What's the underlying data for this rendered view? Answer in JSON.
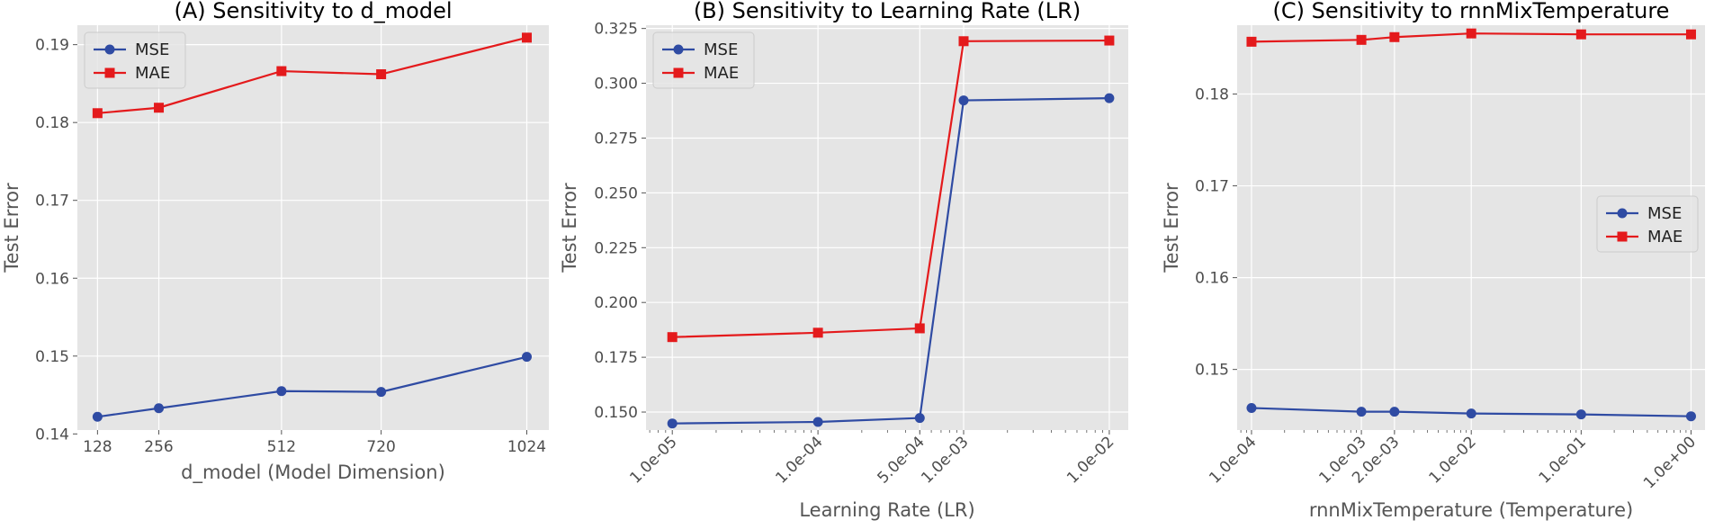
{
  "colors": {
    "mse": "#2f4ba3",
    "mae": "#e41a1c",
    "panel_bg": "#e5e5e5",
    "grid": "#ffffff"
  },
  "chart_data": [
    {
      "type": "line",
      "title": "(A) Sensitivity to d_model",
      "xlabel": "d_model (Model Dimension)",
      "ylabel": "Test Error",
      "xscale": "linear",
      "xlim": [
        86,
        1070
      ],
      "ylim": [
        0.1405,
        0.1925
      ],
      "x": [
        128,
        256,
        512,
        720,
        1024
      ],
      "xticks": [
        128,
        256,
        512,
        720,
        1024
      ],
      "xtick_labels": [
        "128",
        "256",
        "512",
        "720",
        "1024"
      ],
      "yticks": [
        0.14,
        0.15,
        0.16,
        0.17,
        0.18,
        0.19
      ],
      "ytick_labels": [
        "0.14",
        "0.15",
        "0.16",
        "0.17",
        "0.18",
        "0.19"
      ],
      "legend": "top-left",
      "series": [
        {
          "name": "MSE",
          "marker": "circle",
          "values": [
            0.1422,
            0.1433,
            0.1455,
            0.1454,
            0.1499
          ]
        },
        {
          "name": "MAE",
          "marker": "square",
          "values": [
            0.1812,
            0.1819,
            0.1866,
            0.1862,
            0.1909
          ]
        }
      ]
    },
    {
      "type": "line",
      "title": "(B) Sensitivity to Learning Rate (LR)",
      "xlabel": "Learning Rate (LR)",
      "ylabel": "Test Error",
      "xscale": "log",
      "xlim": [
        6.6e-06,
        0.0135
      ],
      "ylim": [
        0.1418,
        0.3265
      ],
      "x": [
        1e-05,
        0.0001,
        0.0005,
        0.001,
        0.01
      ],
      "xticks": [
        1e-05,
        0.0001,
        0.0005,
        0.001,
        0.01
      ],
      "xtick_labels": [
        "1.0e-05",
        "1.0e-04",
        "5.0e-04",
        "1.0e-03",
        "1.0e-02"
      ],
      "yticks": [
        0.15,
        0.175,
        0.2,
        0.225,
        0.25,
        0.275,
        0.3,
        0.325
      ],
      "ytick_labels": [
        "0.150",
        "0.175",
        "0.200",
        "0.225",
        "0.250",
        "0.275",
        "0.300",
        "0.325"
      ],
      "legend": "top-left",
      "series": [
        {
          "name": "MSE",
          "marker": "circle",
          "values": [
            0.1448,
            0.1455,
            0.1473,
            0.2922,
            0.2932
          ]
        },
        {
          "name": "MAE",
          "marker": "square",
          "values": [
            0.1842,
            0.1862,
            0.1882,
            0.3192,
            0.3195
          ]
        }
      ]
    },
    {
      "type": "line",
      "title": "(C) Sensitivity to rnnMixTemperature",
      "xlabel": "rnnMixTemperature (Temperature)",
      "ylabel": "Test Error",
      "xscale": "log",
      "xlim": [
        7.4e-05,
        1.34
      ],
      "ylim": [
        0.1434,
        0.1875
      ],
      "x": [
        0.0001,
        0.001,
        0.002,
        0.01,
        0.1,
        1
      ],
      "xticks": [
        0.0001,
        0.001,
        0.002,
        0.01,
        0.1,
        1
      ],
      "xtick_labels": [
        "1.0e-04",
        "1.0e-03",
        "2.0e-03",
        "1.0e-02",
        "1.0e-01",
        "1.0e+00"
      ],
      "yticks": [
        0.15,
        0.16,
        0.17,
        0.18
      ],
      "ytick_labels": [
        "0.15",
        "0.16",
        "0.17",
        "0.18"
      ],
      "legend": "center-right",
      "series": [
        {
          "name": "MSE",
          "marker": "circle",
          "values": [
            0.1458,
            0.1454,
            0.1454,
            0.1452,
            0.1451,
            0.1449
          ]
        },
        {
          "name": "MAE",
          "marker": "square",
          "values": [
            0.1857,
            0.1859,
            0.1862,
            0.1866,
            0.1865,
            0.1865
          ]
        }
      ]
    }
  ]
}
